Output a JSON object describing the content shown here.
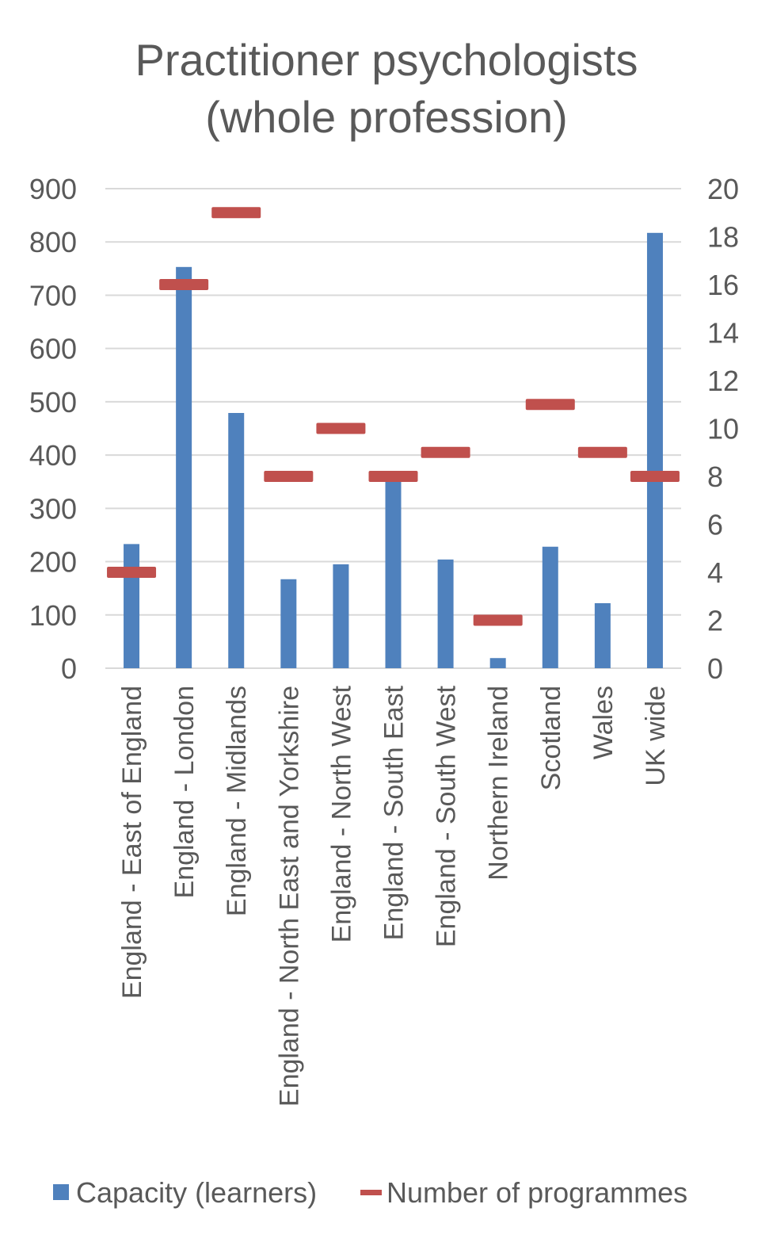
{
  "chart_data": {
    "type": "bar",
    "title": "Practitioner psychologists (whole profession)",
    "title_lines": [
      "Practitioner psychologists",
      "(whole profession)"
    ],
    "categories": [
      "England - East of England",
      "England - London",
      "England - Midlands",
      "England - North East and Yorkshire",
      "England - North West",
      "England - South East",
      "England - South West",
      "Northern Ireland",
      "Scotland",
      "Wales",
      "UK wide"
    ],
    "series": [
      {
        "name": "Capacity (learners)",
        "type": "bar",
        "axis": "left",
        "color": "#4F81BD",
        "values": [
          233,
          753,
          479,
          167,
          195,
          360,
          204,
          19,
          228,
          122,
          817
        ]
      },
      {
        "name": "Number of programmes",
        "type": "marker",
        "axis": "right",
        "color": "#C0504D",
        "values": [
          4,
          16,
          19,
          8,
          10,
          8,
          9,
          2,
          11,
          9,
          8
        ]
      }
    ],
    "ylim": [
      0,
      900
    ],
    "yticks": [
      0,
      100,
      200,
      300,
      400,
      500,
      600,
      700,
      800,
      900
    ],
    "y2lim": [
      0,
      20
    ],
    "y2ticks": [
      0,
      2,
      4,
      6,
      8,
      10,
      12,
      14,
      16,
      18,
      20
    ],
    "grid": true,
    "legend": "bottom"
  }
}
